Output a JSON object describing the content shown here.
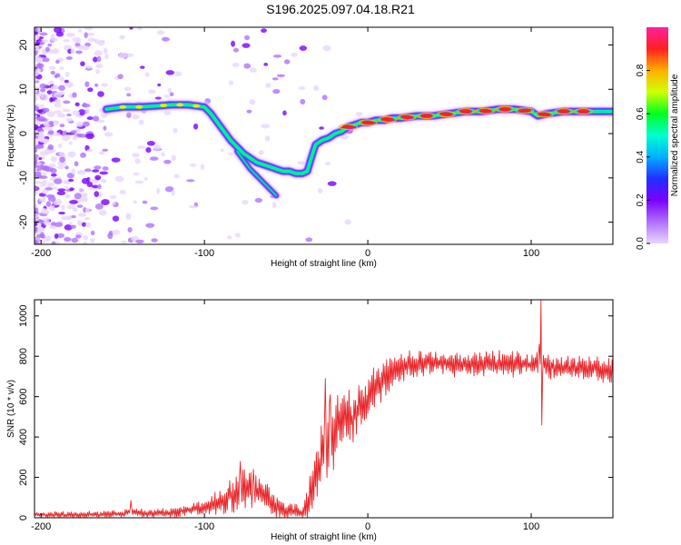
{
  "title": "S196.2025.097.04.18.R21",
  "colors": {
    "snr_line": "#e8262a",
    "ridge_core": "#ff2020",
    "axis": "#000000",
    "colormap": [
      "#ffffff",
      "#e9d6ff",
      "#b070ff",
      "#7a00ff",
      "#2030ff",
      "#00b0ff",
      "#00ffd0",
      "#00ff20",
      "#d0ff00",
      "#ffb000",
      "#ff2020",
      "#ff20a0"
    ]
  },
  "chart_data": [
    {
      "type": "heatmap",
      "name": "spectrogram",
      "xlabel": "Height of straight line (km)",
      "ylabel": "Frequency (Hz)",
      "xlim": [
        -204,
        150
      ],
      "ylim": [
        -25,
        24
      ],
      "xticks": [
        -200,
        -100,
        0,
        100
      ],
      "yticks": [
        -20,
        -10,
        0,
        10,
        20
      ],
      "ridge": {
        "x": [
          -160,
          -150,
          -140,
          -130,
          -120,
          -110,
          -100,
          -96,
          -92,
          -88,
          -84,
          -80,
          -76,
          -72,
          -68,
          -64,
          -60,
          -56,
          -52,
          -48,
          -44,
          -40,
          -37,
          -35,
          -32,
          -28,
          -24,
          -20,
          -16,
          -12,
          -8,
          -4,
          0,
          5,
          10,
          15,
          20,
          30,
          40,
          50,
          60,
          70,
          80,
          90,
          100,
          104,
          110,
          120,
          130,
          140,
          150
        ],
        "y": [
          5.5,
          6,
          6,
          6.2,
          6.5,
          6.5,
          6,
          4.5,
          2.5,
          0.5,
          -1.5,
          -3,
          -4.5,
          -5.5,
          -6.5,
          -7,
          -7.5,
          -8,
          -8.5,
          -8.5,
          -9,
          -9,
          -8.5,
          -6,
          -2.5,
          -1.5,
          -1,
          0,
          0.5,
          1.5,
          2,
          2.5,
          2.5,
          3,
          3,
          3.5,
          3.5,
          4,
          4,
          4.5,
          5,
          5,
          5.5,
          5.5,
          5,
          4,
          4.5,
          5,
          5,
          5,
          5
        ]
      },
      "branch": {
        "x": [
          -80,
          -76,
          -72,
          -68,
          -64,
          -60,
          -56
        ],
        "y": [
          -4,
          -6,
          -8,
          -9.5,
          -11,
          -12.5,
          -14
        ]
      },
      "colorbar": {
        "label": "Normalized spectral amplitude",
        "ticks": [
          0.0,
          0.2,
          0.4,
          0.6,
          0.8
        ],
        "tick_labels": [
          "0.0",
          "0.2",
          "0.4",
          "0.6",
          "0.8"
        ],
        "range": [
          0,
          1
        ]
      }
    },
    {
      "type": "line",
      "name": "snr",
      "xlabel": "Height of straight line (km)",
      "ylabel": "SNR (10 * v/v)",
      "xlim": [
        -204,
        150
      ],
      "ylim": [
        0,
        1080
      ],
      "xticks": [
        -200,
        -100,
        0,
        100
      ],
      "yticks": [
        0,
        200,
        400,
        600,
        800,
        1000
      ],
      "envelope": {
        "x": [
          -204,
          -180,
          -160,
          -150,
          -146,
          -140,
          -120,
          -110,
          -100,
          -90,
          -84,
          -80,
          -76,
          -72,
          -66,
          -62,
          -58,
          -50,
          -40,
          -36,
          -34,
          -30,
          -28,
          -26,
          -24,
          -22,
          -20,
          -15,
          -10,
          -5,
          0,
          5,
          10,
          15,
          20,
          25,
          30,
          40,
          50,
          60,
          80,
          100,
          110,
          120,
          140,
          150
        ],
        "y": [
          15,
          15,
          18,
          20,
          30,
          22,
          25,
          35,
          50,
          80,
          110,
          130,
          150,
          140,
          130,
          110,
          60,
          30,
          28,
          70,
          150,
          260,
          300,
          340,
          380,
          400,
          440,
          470,
          500,
          540,
          590,
          640,
          680,
          720,
          745,
          755,
          760,
          770,
          765,
          760,
          765,
          760,
          750,
          745,
          740,
          735
        ]
      },
      "noise": {
        "x": [
          -204,
          -160,
          -130,
          -100,
          -80,
          -60,
          -40,
          -34,
          -20,
          0,
          20,
          40,
          150
        ],
        "y": [
          12,
          15,
          20,
          30,
          90,
          60,
          25,
          120,
          170,
          110,
          70,
          55,
          55
        ]
      },
      "spikes": [
        {
          "x": -145,
          "y": 85
        },
        {
          "x": -78,
          "y": 280
        },
        {
          "x": -70,
          "y": 240
        },
        {
          "x": -26,
          "y": 690
        },
        {
          "x": -23,
          "y": 610
        },
        {
          "x": 106,
          "y": 1080
        },
        {
          "x": 106.5,
          "y": 460
        },
        {
          "x": 105,
          "y": 860
        }
      ]
    }
  ]
}
